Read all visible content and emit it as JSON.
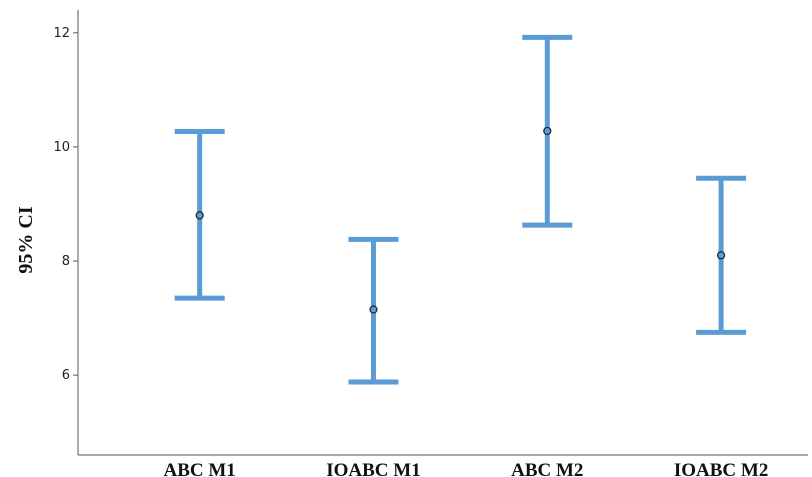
{
  "chart_data": {
    "type": "errorbar",
    "categories": [
      "ABC  M1",
      "IOABC  M1",
      "ABC  M2",
      "IOABC  M2"
    ],
    "series": [
      {
        "means": [
          8.8,
          7.15,
          10.28,
          8.1
        ],
        "lower": [
          7.35,
          5.88,
          8.63,
          6.75
        ],
        "upper": [
          10.27,
          8.38,
          11.92,
          9.45
        ]
      }
    ],
    "ylabel": "95% CI",
    "xlabel": "",
    "ylim": [
      4.6,
      12.4
    ],
    "yticks": [
      6,
      8,
      10,
      12
    ],
    "ytick_labels": [
      "6",
      "8",
      "10",
      "12"
    ],
    "grid": false,
    "colors": {
      "bar": "#5b9bd5",
      "marker_fill": "#5b9bd5",
      "marker_edge": "#222222"
    }
  }
}
